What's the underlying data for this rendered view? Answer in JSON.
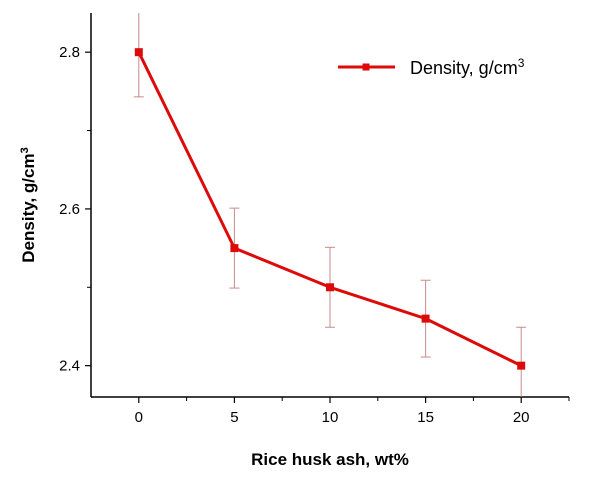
{
  "chart_data": {
    "type": "line",
    "xlabel": "Rice husk ash, wt%",
    "ylabel_base": "Density, g/cm",
    "ylabel_sup": "3",
    "x": [
      0,
      5,
      10,
      15,
      20
    ],
    "x_ticks": [
      "0",
      "5",
      "10",
      "15",
      "20"
    ],
    "y_ticks": [
      "2.4",
      "2.6",
      "2.8"
    ],
    "y_tick_values": [
      2.4,
      2.6,
      2.8
    ],
    "xlim": [
      -2.5,
      22.5
    ],
    "ylim": [
      2.36,
      2.85
    ],
    "grid": false,
    "legend_position": "top-right",
    "series": [
      {
        "name_base": "Density, g/cm",
        "name_sup": "3",
        "color": "#dd0a0a",
        "errorbar_color": "#c98a8a",
        "marker": "square",
        "values": [
          2.8,
          2.55,
          2.5,
          2.46,
          2.4
        ],
        "errors": [
          0.057,
          0.051,
          0.051,
          0.049,
          0.049
        ]
      }
    ]
  }
}
